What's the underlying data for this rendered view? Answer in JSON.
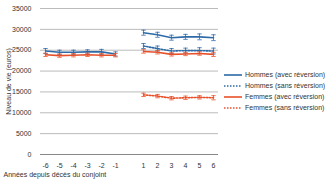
{
  "chart_data": {
    "type": "line",
    "x_label": "Années depuis décès du conjoint",
    "y_label": "Niveau de vie (euros)",
    "categories": [
      "-6",
      "-5",
      "-4",
      "-3",
      "-2",
      "-1",
      null,
      "1",
      "2",
      "3",
      "4",
      "5",
      "6"
    ],
    "ylim": [
      0,
      35000
    ],
    "yticks": [
      0,
      5000,
      10000,
      15000,
      20000,
      25000,
      30000,
      35000
    ],
    "grid": true,
    "legend": "right",
    "series": [
      {
        "name": "Hommes (avec réversion)",
        "color": "#2e6aa8",
        "line_style": "solid",
        "marker": "error_bar",
        "values": [
          24800,
          24500,
          24500,
          24600,
          24600,
          24100,
          null,
          29200,
          28700,
          28000,
          28200,
          28200,
          28000
        ],
        "errors": [
          600,
          500,
          500,
          500,
          600,
          500,
          null,
          600,
          600,
          600,
          600,
          700,
          700
        ]
      },
      {
        "name": "Hommes (sans réversion)",
        "color": "#2e6aa8",
        "line_style": "dotted",
        "marker": "error_bar",
        "values": [
          null,
          null,
          null,
          null,
          null,
          null,
          null,
          26000,
          25400,
          24800,
          24900,
          24900,
          24800
        ],
        "errors": [
          null,
          null,
          null,
          null,
          null,
          null,
          null,
          600,
          600,
          600,
          600,
          700,
          700
        ]
      },
      {
        "name": "Femmes (avec réversion)",
        "color": "#e8502a",
        "line_style": "solid",
        "marker": "error_bar",
        "values": [
          23900,
          23700,
          23800,
          23900,
          23800,
          23800,
          null,
          24700,
          24500,
          24000,
          24100,
          24200,
          24000
        ],
        "errors": [
          400,
          400,
          400,
          400,
          400,
          400,
          null,
          400,
          400,
          400,
          400,
          400,
          500
        ]
      },
      {
        "name": "Femmes (sans réversion)",
        "color": "#e8502a",
        "line_style": "dotted",
        "marker": "error_bar",
        "values": [
          null,
          null,
          null,
          null,
          null,
          null,
          null,
          14300,
          14000,
          13500,
          13600,
          13700,
          13600
        ],
        "errors": [
          null,
          null,
          null,
          null,
          null,
          null,
          null,
          400,
          400,
          400,
          400,
          400,
          500
        ]
      }
    ]
  }
}
